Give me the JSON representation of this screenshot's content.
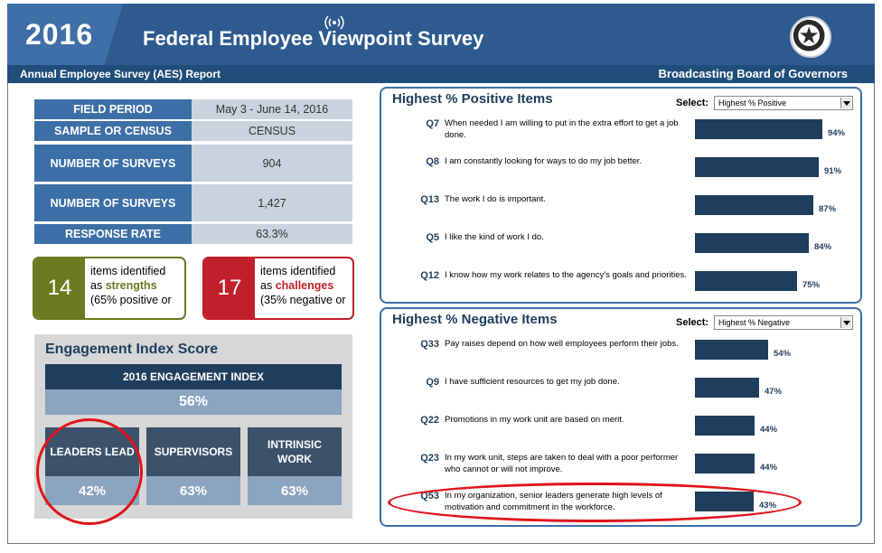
{
  "header": {
    "year": "2016",
    "title": "Federal Employee Viewpoint Survey",
    "subtitle_left": "Annual Employee Survey (AES) Report",
    "subtitle_right": "Broadcasting Board of Governors"
  },
  "facts": [
    {
      "label": "FIELD PERIOD",
      "value": "May 3 - June 14, 2016"
    },
    {
      "label": "SAMPLE OR CENSUS",
      "value": "CENSUS"
    },
    {
      "label": "NUMBER OF SURVEYS",
      "value": "904"
    },
    {
      "label": "NUMBER OF SURVEYS",
      "value": "1,427"
    },
    {
      "label": "RESPONSE RATE",
      "value": "63.3%"
    }
  ],
  "strengths": {
    "count": "14",
    "line1": "items identified",
    "line2_prefix": "as ",
    "line2_word": "strengths",
    "line3": "(65% positive or",
    "color": "#6b7a1f"
  },
  "challenges": {
    "count": "17",
    "line1": "items identified",
    "line2_prefix": "as ",
    "line2_word": "challenges",
    "line3": "(35% negative or",
    "color": "#c0202a"
  },
  "engagement": {
    "title": "Engagement Index Score",
    "index_label": "2016 ENGAGEMENT INDEX",
    "index_value": "56%",
    "subs": [
      {
        "label": "LEADERS LEAD",
        "value": "42%"
      },
      {
        "label": "SUPERVISORS",
        "value": "63%"
      },
      {
        "label": "INTRINSIC WORK",
        "value": "63%"
      }
    ]
  },
  "positive": {
    "title": "Highest % Positive Items",
    "select_label": "Select:",
    "select_value": "Highest % Positive",
    "items": [
      {
        "q": "Q7",
        "text": "When needed I am willing to put in the extra effort to get a job done.",
        "value": 94,
        "label": "94%"
      },
      {
        "q": "Q8",
        "text": "I am constantly looking for ways to do my job better.",
        "value": 91,
        "label": "91%"
      },
      {
        "q": "Q13",
        "text": "The work I do is important.",
        "value": 87,
        "label": "87%"
      },
      {
        "q": "Q5",
        "text": "I like the kind of work I do.",
        "value": 84,
        "label": "84%"
      },
      {
        "q": "Q12",
        "text": "I know how my work relates to the agency's goals and priorities.",
        "value": 75,
        "label": "75%"
      }
    ]
  },
  "negative": {
    "title": "Highest % Negative Items",
    "select_label": "Select:",
    "select_value": "Highest % Negative",
    "items": [
      {
        "q": "Q33",
        "text": "Pay raises depend on how well employees perform their jobs.",
        "value": 54,
        "label": "54%"
      },
      {
        "q": "Q9",
        "text": "I have sufficient resources to get my job done.",
        "value": 47,
        "label": "47%"
      },
      {
        "q": "Q22",
        "text": "Promotions in my work unit are based on merit.",
        "value": 44,
        "label": "44%"
      },
      {
        "q": "Q23",
        "text": "In my work unit, steps are taken to deal with a poor performer who cannot or will not improve.",
        "value": 44,
        "label": "44%"
      },
      {
        "q": "Q53",
        "text": "In my organization, senior leaders generate high levels of motivation and commitment in the workforce.",
        "value": 43,
        "label": "43%"
      }
    ]
  },
  "colors": {
    "accent": "#1f3d5c",
    "brand": "#2e5b8f",
    "highlight": "#e0141b"
  }
}
